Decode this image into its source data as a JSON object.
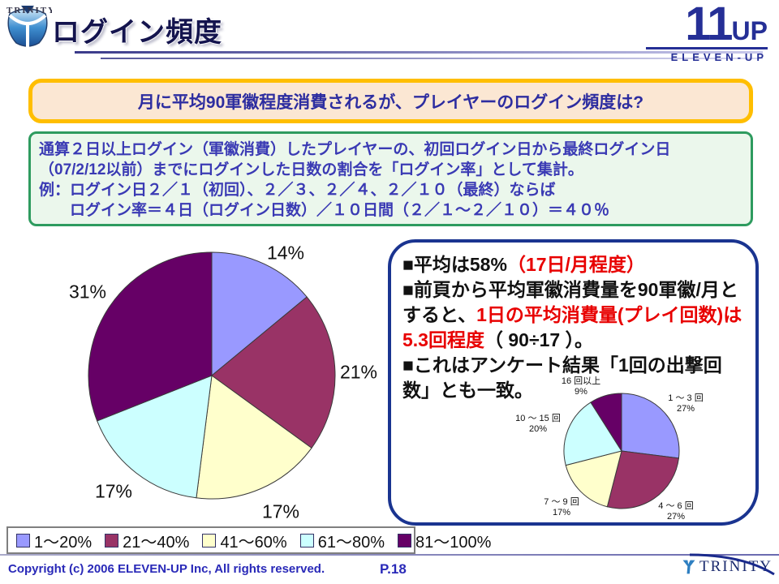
{
  "header": {
    "logo_text": "TRINITY",
    "title": "ログイン頻度",
    "brand": {
      "big": "11",
      "up": "UP",
      "sub": "ELEVEN-UP"
    }
  },
  "question_box": {
    "text": "月に平均90軍徽程度消費されるが、プレイヤーのログイン頻度は?"
  },
  "definition_box": {
    "lines": [
      "通算２日以上ログイン（軍徽消費）したプレイヤーの、初回ログイン日から最終ログイン日",
      "（07/2/12以前）までにログインした日数の割合を「ログイン率」として集計。",
      "例：ログイン日２／１（初回）、２／３、２／４、２／１０（最終）ならば",
      "　　ログイン率＝４日（ログイン日数）／１０日間（２／１～２／１０）＝４０％"
    ]
  },
  "insight_box": {
    "paragraphs": [
      [
        {
          "text": "■平均は58%",
          "red": false
        },
        {
          "text": "（17日/月程度）",
          "red": true
        }
      ],
      [
        {
          "text": "■前頁から平均軍徽消費量を90軍徽/月とすると、",
          "red": false
        },
        {
          "text": "1日の平均消費量(プレイ回数)は5.3回程度",
          "red": true
        },
        {
          "text": "（ 90÷17 ）。",
          "red": false
        }
      ],
      [
        {
          "text": "■これはアンケート結果「1回の出撃回数」とも一致。",
          "red": false
        }
      ]
    ]
  },
  "chart_data": [
    {
      "type": "pie",
      "categories": [
        "1～20%",
        "21～40%",
        "41～60%",
        "61～80%",
        "81～100%"
      ],
      "values": [
        14,
        21,
        17,
        17,
        31
      ],
      "labels": [
        "14%",
        "21%",
        "17%",
        "17%",
        "31%"
      ],
      "colors": [
        "#9999FF",
        "#993366",
        "#FFFFCC",
        "#CCFFFF",
        "#660066"
      ],
      "start": "12-oclock, clockwise",
      "legend_position": "bottom-left"
    },
    {
      "type": "pie",
      "categories": [
        "1 ～ 3 回",
        "4 ～ 6 回",
        "7 ～ 9 回",
        "10 ～ 15 回",
        "16 回以上"
      ],
      "values": [
        27,
        27,
        17,
        20,
        9
      ],
      "pct_labels": [
        "27%",
        "27%",
        "17%",
        "20%",
        "9%"
      ],
      "colors": [
        "#9999FF",
        "#993366",
        "#FFFFCC",
        "#CCFFFF",
        "#660066"
      ],
      "start": "12-oclock, clockwise",
      "legend_position": "none"
    }
  ],
  "footer": {
    "copyright": "Copyright (c) 2006 ELEVEN-UP Inc, All rights reserved.",
    "page": "P.18",
    "trinity": "TRINITY"
  },
  "colors": {
    "accent_red": "#E80000",
    "navy_border": "#1A3490",
    "orange_border": "#FFBE00",
    "green_border": "#2E9B5F",
    "text_blue": "#3A3AB4",
    "footer_blue": "#2929B8"
  }
}
